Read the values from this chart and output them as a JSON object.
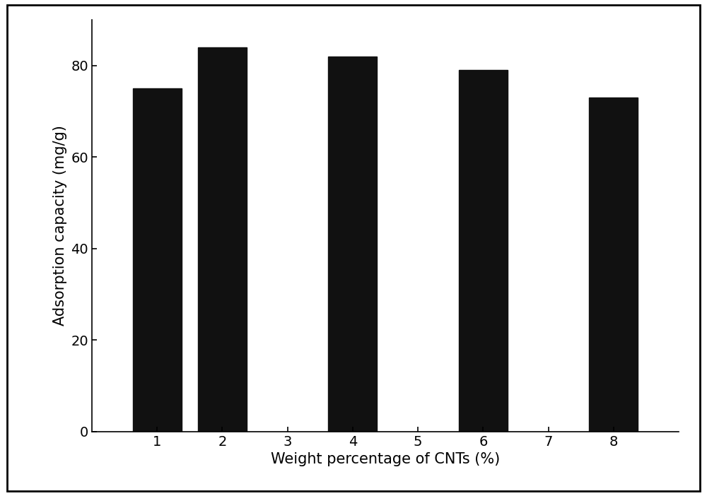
{
  "bar_positions": [
    1,
    2,
    4,
    6,
    8
  ],
  "bar_values": [
    75.0,
    84.0,
    82.0,
    79.0,
    73.0
  ],
  "bar_color": "#111111",
  "bar_width": 0.75,
  "xlabel": "Weight percentage of CNTs (%)",
  "ylabel": "Adsorption capacity (mg/g)",
  "xlim": [
    0.0,
    9.0
  ],
  "ylim": [
    0,
    90
  ],
  "xticks": [
    1,
    2,
    3,
    4,
    5,
    6,
    7,
    8
  ],
  "yticks": [
    0,
    20,
    40,
    60,
    80
  ],
  "xlabel_fontsize": 15,
  "ylabel_fontsize": 15,
  "tick_fontsize": 14,
  "background_color": "#ffffff",
  "border_color": "#000000",
  "figure_width": 10.0,
  "figure_height": 7.02,
  "dpi": 100
}
